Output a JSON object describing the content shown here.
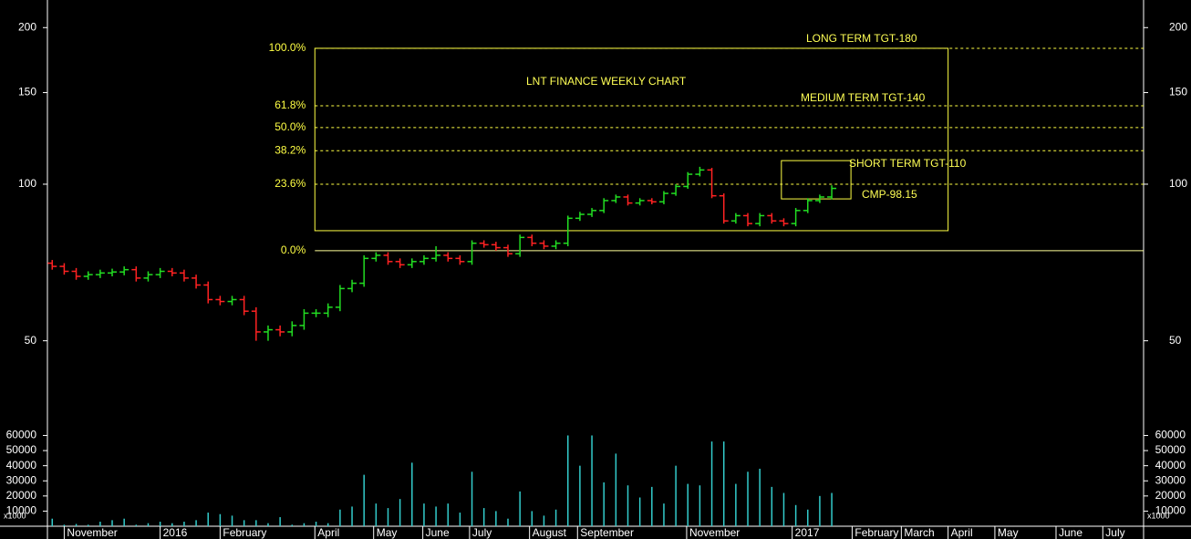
{
  "chart_data": {
    "type": "ohlc",
    "title": "LNT FINANCE WEEKLY CHART",
    "log_scale": true,
    "categories": [
      null,
      null,
      null,
      null,
      null,
      null,
      null,
      null,
      null,
      null,
      null,
      null,
      null,
      null,
      null,
      null,
      null,
      null,
      null,
      null,
      null,
      null,
      null,
      null,
      null,
      null,
      null,
      null,
      null,
      null,
      null,
      null,
      null,
      null,
      null,
      null,
      null,
      null,
      null,
      null,
      null,
      null,
      null,
      null,
      null,
      null,
      null,
      null,
      null,
      null,
      null,
      null,
      null,
      null,
      null,
      null,
      null,
      null,
      null,
      null,
      null,
      null,
      null,
      null,
      null,
      null
    ],
    "open": [
      70.5,
      69.5,
      68,
      66.5,
      67,
      67.5,
      67.8,
      68.5,
      66,
      67,
      68,
      67.5,
      66,
      64,
      60,
      59.5,
      60,
      57,
      52,
      52.5,
      52,
      53.5,
      56.5,
      56.5,
      58,
      63,
      64.5,
      72,
      73,
      71,
      70,
      71,
      72,
      73,
      72,
      71,
      77,
      76.5,
      75.5,
      73.5,
      79,
      77,
      76,
      77,
      86,
      87.5,
      89,
      93,
      94.5,
      92,
      93,
      92.5,
      96,
      99,
      104.5,
      106.5,
      95,
      85,
      87,
      84,
      87,
      85,
      84,
      89,
      93,
      94.5
    ],
    "high": [
      71.5,
      70.5,
      69,
      68,
      68.5,
      68.8,
      69.5,
      69.5,
      68,
      69,
      69,
      68.5,
      67,
      65,
      61,
      61,
      61,
      58,
      53.5,
      53.5,
      54.5,
      57.5,
      57.5,
      59,
      64,
      65.5,
      73,
      74,
      74,
      72,
      72,
      73,
      76,
      74,
      73,
      78,
      78,
      77.5,
      76.5,
      80,
      80,
      78,
      78,
      87,
      88.5,
      90,
      94,
      95.5,
      95.5,
      94,
      94,
      97,
      100,
      105.5,
      108,
      107.5,
      96,
      88,
      88,
      88,
      88,
      86,
      90,
      94,
      95.5,
      99.5
    ],
    "low": [
      68.5,
      67,
      65.5,
      65.5,
      66,
      66.5,
      66.8,
      65,
      65,
      66,
      66.5,
      65,
      63,
      59,
      58.5,
      58.5,
      56,
      50,
      50,
      51,
      51,
      52.5,
      55.5,
      55.5,
      57,
      62,
      63.5,
      71,
      70,
      69,
      69,
      70,
      71,
      71,
      70,
      70,
      75.5,
      74.5,
      72.5,
      72.5,
      76,
      75,
      75,
      76,
      85,
      86.5,
      88,
      92,
      91,
      91,
      91.5,
      91.5,
      95,
      98,
      103.5,
      94,
      84,
      84,
      83,
      83,
      84,
      83,
      83,
      88,
      92,
      93.5
    ],
    "close": [
      69.5,
      68,
      66.5,
      67,
      67.5,
      67.8,
      68.5,
      66,
      67,
      68,
      67.5,
      66,
      64,
      60,
      59.5,
      60,
      57,
      52,
      52.5,
      52,
      53.5,
      56.5,
      56.5,
      58,
      63,
      64.5,
      72,
      73,
      71,
      70,
      71,
      72,
      73,
      72,
      71,
      77,
      76.5,
      75.5,
      73.5,
      79,
      77,
      76,
      77,
      86,
      87.5,
      89,
      93,
      94.5,
      92,
      93,
      92.5,
      96,
      99,
      104.5,
      106.5,
      95,
      85,
      87,
      84,
      87,
      85,
      84,
      89,
      93,
      94.5,
      98.15
    ],
    "up_color": "#22dd22",
    "down_color": "#ff2222",
    "ylim": [
      35,
      226
    ],
    "yticks": [
      50,
      100,
      150,
      200
    ],
    "xlim": [
      -0.4,
      91
    ],
    "xticks": [
      {
        "value": 1.0,
        "label": "November"
      },
      {
        "value": 9.0,
        "label": "2016"
      },
      {
        "value": 14.0,
        "label": "February"
      },
      {
        "value": 21.9,
        "label": "April"
      },
      {
        "value": 26.8,
        "label": "May"
      },
      {
        "value": 30.9,
        "label": "June"
      },
      {
        "value": 34.8,
        "label": "July"
      },
      {
        "value": 39.8,
        "label": "August"
      },
      {
        "value": 43.8,
        "label": "September"
      },
      {
        "value": 52.9,
        "label": "November"
      },
      {
        "value": 61.7,
        "label": "2017"
      },
      {
        "value": 66.7,
        "label": "February"
      },
      {
        "value": 70.8,
        "label": "March"
      },
      {
        "value": 74.7,
        "label": "April"
      },
      {
        "value": 78.6,
        "label": "May"
      },
      {
        "value": 83.7,
        "label": "June"
      },
      {
        "value": 87.6,
        "label": "July"
      }
    ],
    "volume": {
      "values": [
        5000,
        1000,
        1500,
        1000,
        3000,
        4000,
        5000,
        1000,
        2000,
        3000,
        2000,
        3000,
        4000,
        9000,
        8000,
        7000,
        4000,
        4000,
        2000,
        6000,
        1000,
        2000,
        3000,
        2000,
        11000,
        13000,
        34000,
        15000,
        12000,
        18000,
        42000,
        15000,
        13000,
        15000,
        9000,
        36000,
        12000,
        10000,
        5000,
        23000,
        10000,
        7000,
        11000,
        60000,
        40000,
        60000,
        29000,
        48000,
        27000,
        19000,
        26000,
        15000,
        40000,
        28000,
        27000,
        56000,
        56000,
        28000,
        36000,
        38000,
        26000,
        22000,
        14000,
        11000,
        20000,
        22000
      ],
      "color": "#33cccc",
      "ylim": [
        0,
        64500
      ],
      "yticks": [
        10000,
        20000,
        30000,
        40000,
        50000,
        60000
      ],
      "multiplier": "x1000"
    },
    "fibonacci": {
      "color": "#ffff44",
      "levels": [
        {
          "label": "0.0%",
          "value": 74.5
        },
        {
          "label": "23.6%",
          "value": 100
        },
        {
          "label": "38.2%",
          "value": 116
        },
        {
          "label": "50.0%",
          "value": 128.5
        },
        {
          "label": "61.8%",
          "value": 141.5
        },
        {
          "label": "100.0%",
          "value": 182.5
        }
      ]
    },
    "boxes": [
      {
        "x": [
          21.9,
          74.7
        ],
        "y": [
          81.4,
          182.5
        ]
      },
      {
        "x": [
          60.8,
          66.6
        ],
        "y": [
          93.7,
          111
        ]
      }
    ],
    "annotations": {
      "long": "LONG TERM TGT-180",
      "medium": "MEDIUM TERM TGT-140",
      "short": "SHORT TERM TGT-110",
      "cmp": "CMP-98.15"
    }
  }
}
